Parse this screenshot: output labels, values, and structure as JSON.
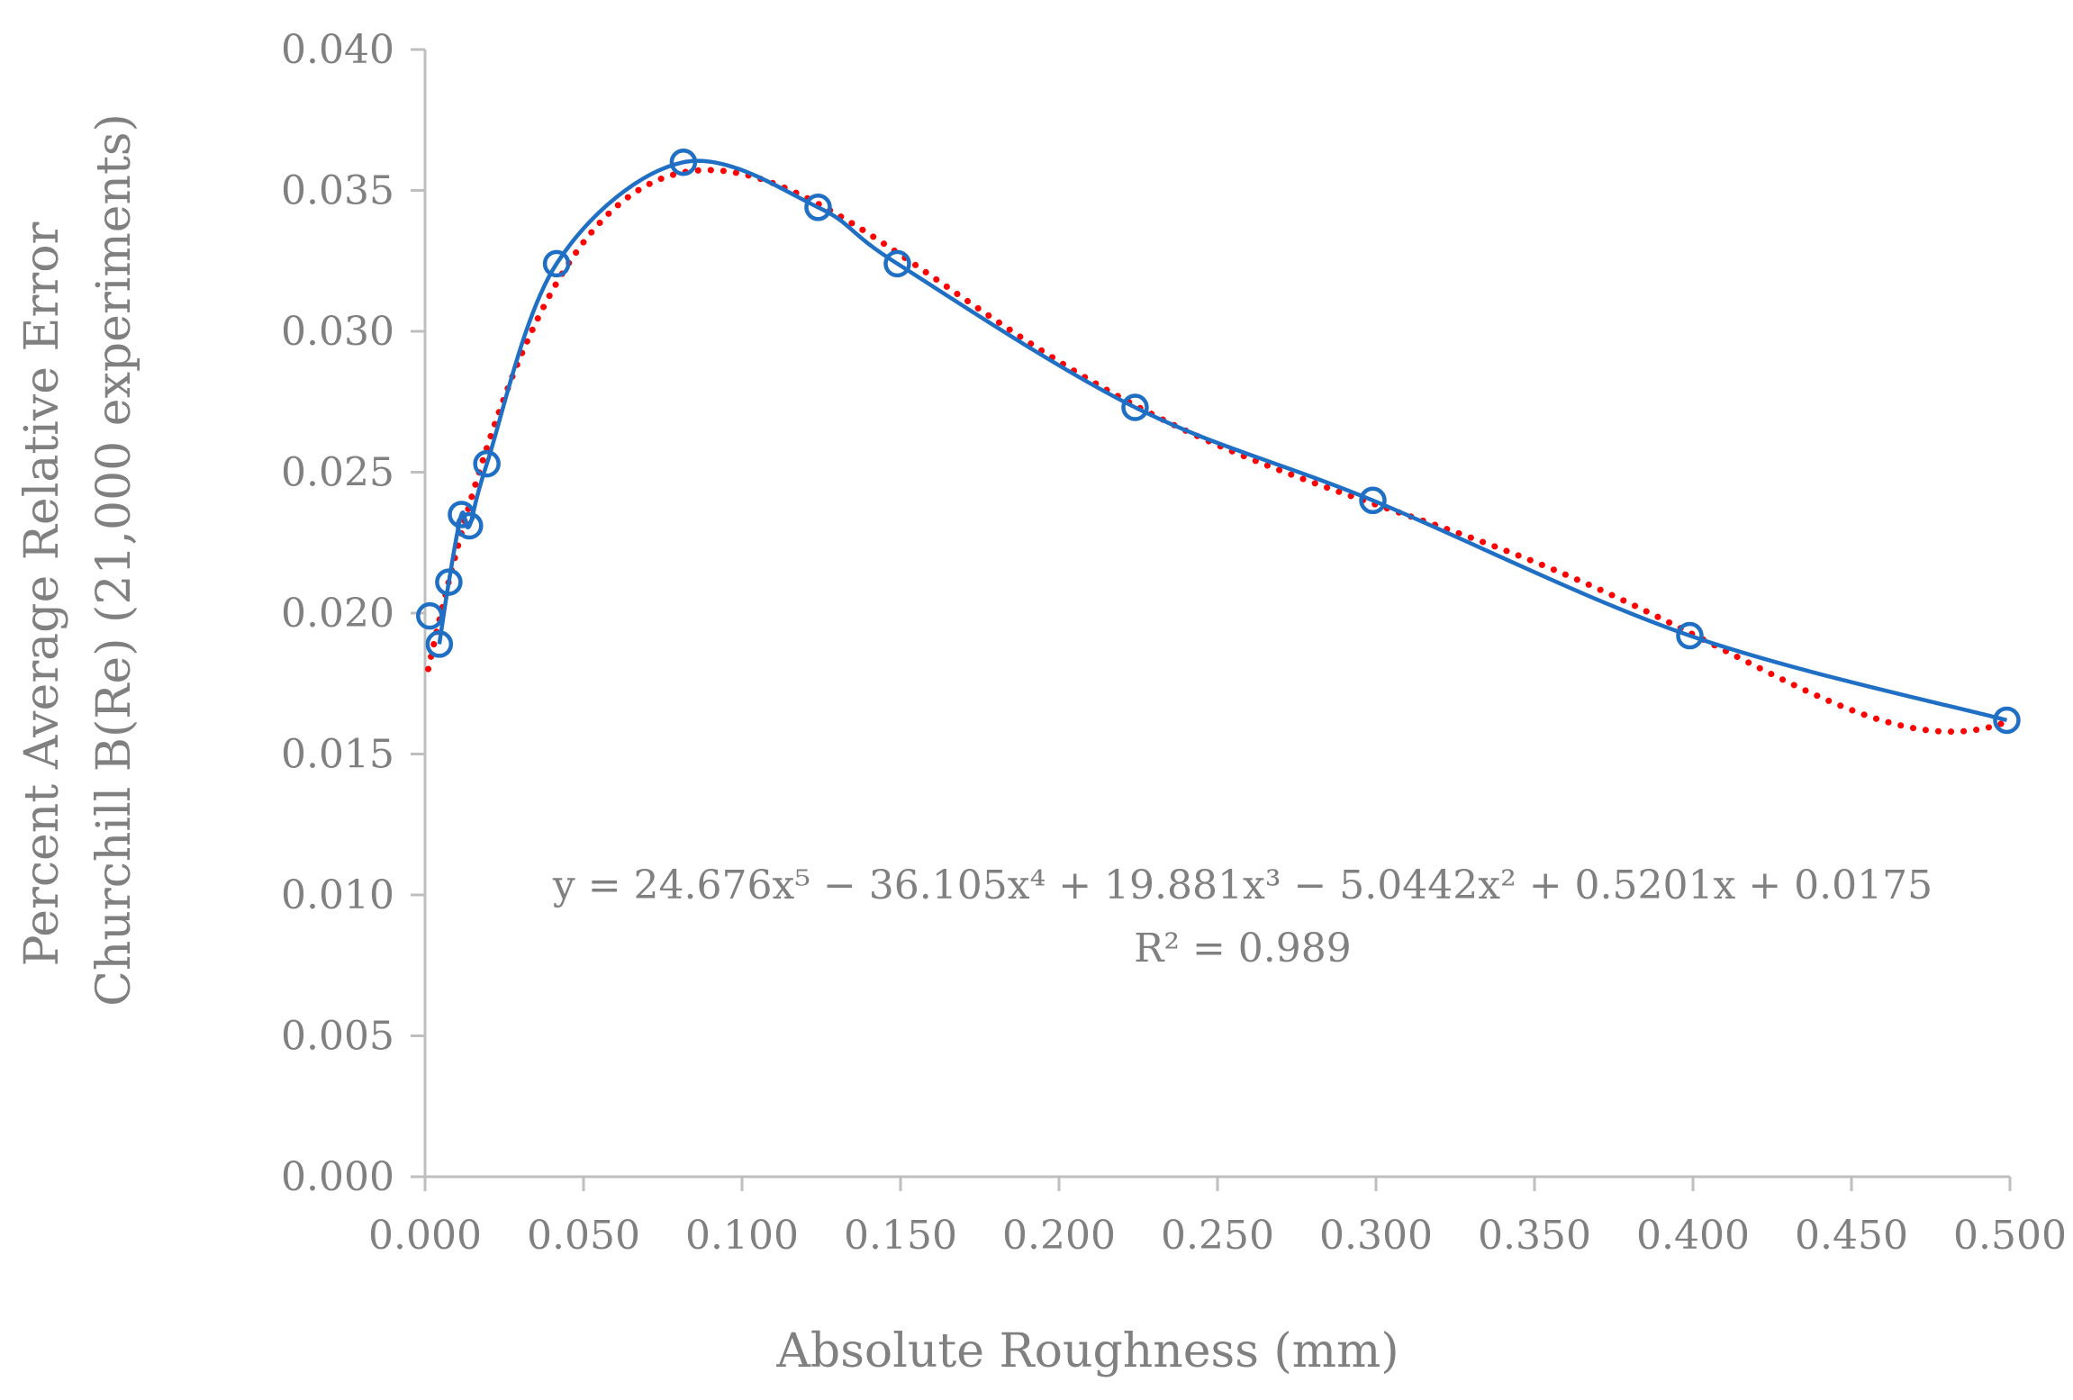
{
  "chart_data": {
    "type": "scatter",
    "title": "",
    "xlabel": "Absolute Roughness (mm)",
    "ylabel_lines": [
      "Percent Average Relative Error",
      "Churchill B(Re) (21,000 experiments)"
    ],
    "xlim": [
      0.0,
      0.5
    ],
    "ylim": [
      0.0,
      0.04
    ],
    "x_ticks": [
      "0.000",
      "0.050",
      "0.100",
      "0.150",
      "0.200",
      "0.250",
      "0.300",
      "0.350",
      "0.400",
      "0.450",
      "0.500"
    ],
    "y_ticks": [
      "0.000",
      "0.005",
      "0.010",
      "0.015",
      "0.020",
      "0.025",
      "0.030",
      "0.035",
      "0.040"
    ],
    "grid": false,
    "legend": "none",
    "series": [
      {
        "kind": "markers-with-smooth-line",
        "color": "#1f6fc5",
        "marker": "open-circle",
        "x": [
          0.0015,
          0.0045,
          0.0075,
          0.0115,
          0.014,
          0.0195,
          0.0415,
          0.0815,
          0.124,
          0.149,
          0.224,
          0.299,
          0.399,
          0.499
        ],
        "y": [
          0.0199,
          0.0189,
          0.0211,
          0.0235,
          0.0231,
          0.0253,
          0.0324,
          0.036,
          0.0344,
          0.0324,
          0.0273,
          0.024,
          0.0192,
          0.0162
        ]
      },
      {
        "kind": "trendline",
        "color": "#ff0000",
        "style": "dotted",
        "fit": "polynomial-5",
        "coefficients": [
          24.676,
          -36.105,
          19.881,
          -5.0442,
          0.5201,
          0.0175
        ],
        "x_range": [
          0.001,
          0.499
        ]
      }
    ],
    "annotation": {
      "equation": "y = 24.676x⁵ − 36.105x⁴ + 19.881x³ − 5.0442x² + 0.5201x + 0.0175",
      "r_squared": "R² = 0.989"
    }
  }
}
